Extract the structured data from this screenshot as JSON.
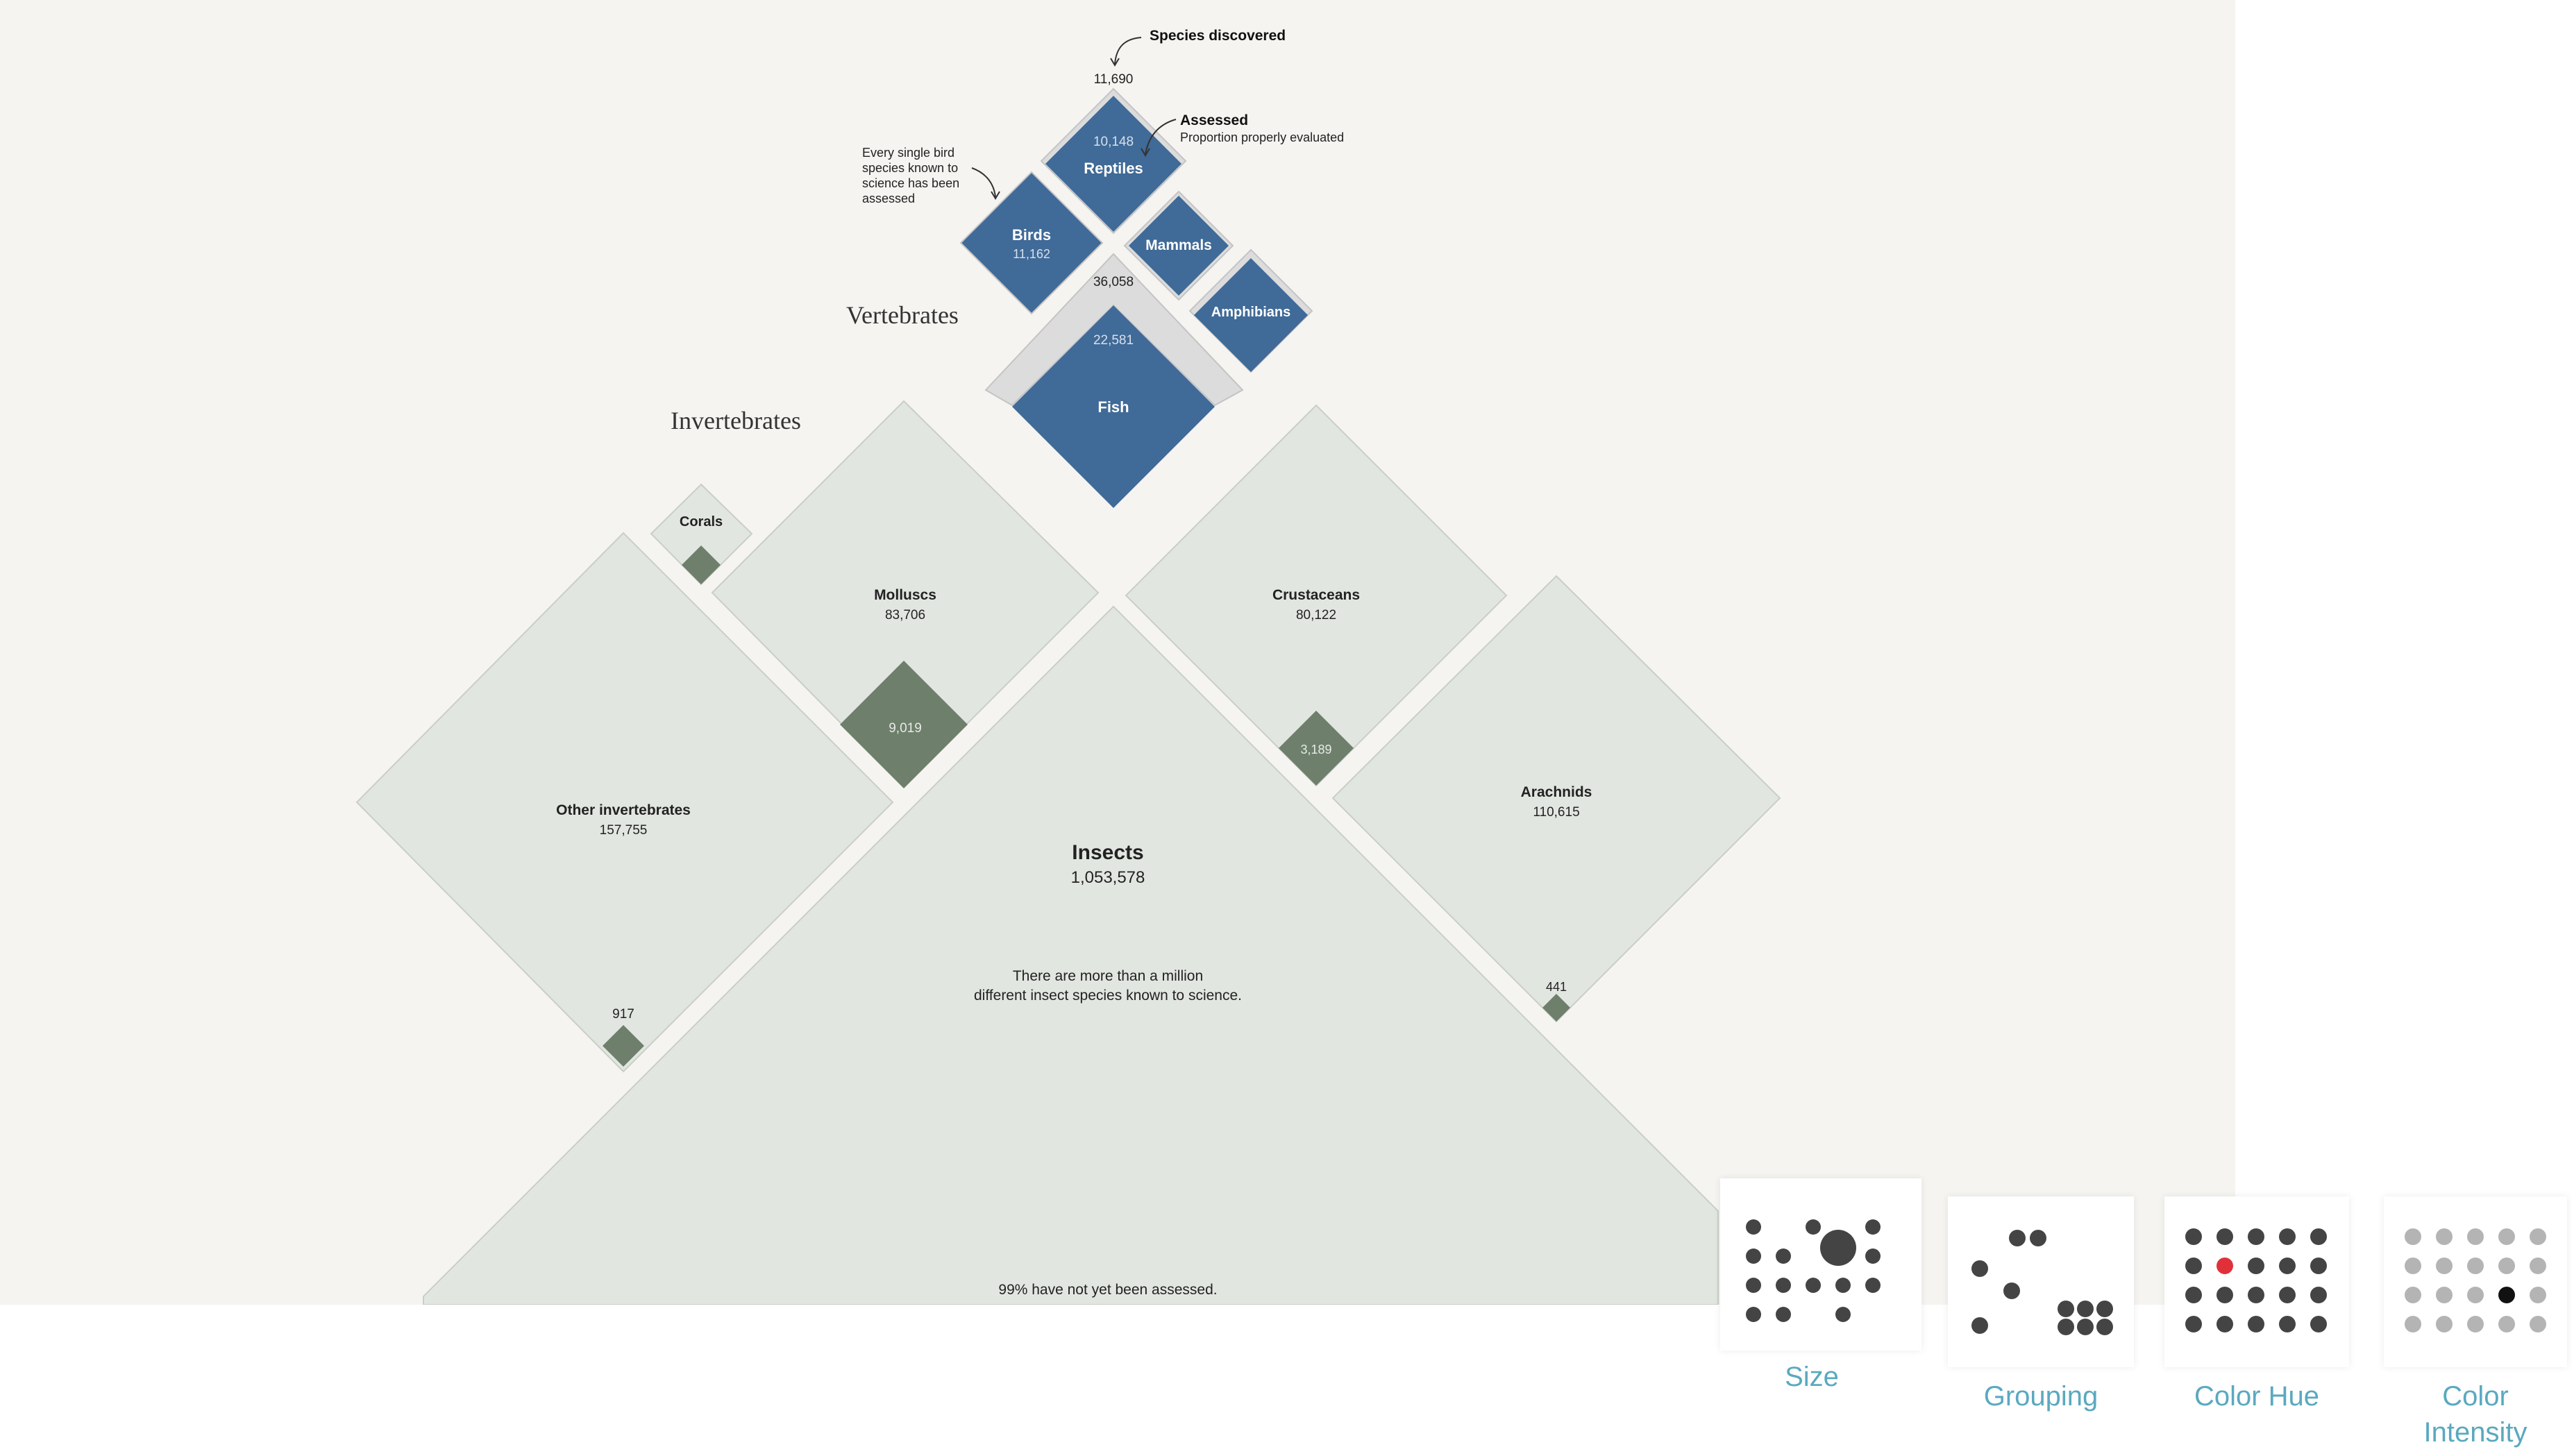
{
  "diagram": {
    "headings": {
      "vertebrates": "Vertebrates",
      "invertebrates": "Invertebrates"
    },
    "annotations": {
      "species_discovered": "Species discovered",
      "assessed": "Assessed",
      "assessed_sub": "Proportion properly evaluated",
      "birds_note": [
        "Every single bird",
        "species known to",
        "science has been",
        "assessed"
      ],
      "insects_note": [
        "There are more than a million",
        "different insect species known to science."
      ],
      "insects_footer": "99% have not yet been assessed."
    },
    "vertebrates_total": "36,058",
    "groups": {
      "reptiles": {
        "name": "Reptiles",
        "discovered": "11,690",
        "assessed": "10,148"
      },
      "birds": {
        "name": "Birds",
        "discovered": "11,162"
      },
      "mammals": {
        "name": "Mammals"
      },
      "amphibians": {
        "name": "Amphibians"
      },
      "fish": {
        "name": "Fish",
        "assessed": "22,581"
      },
      "corals": {
        "name": "Corals"
      },
      "molluscs": {
        "name": "Molluscs",
        "discovered": "83,706",
        "assessed": "9,019"
      },
      "crustaceans": {
        "name": "Crustaceans",
        "discovered": "80,122",
        "assessed": "3,189"
      },
      "other": {
        "name": "Other invertebrates",
        "discovered": "157,755",
        "assessed": "917"
      },
      "arachnids": {
        "name": "Arachnids",
        "discovered": "110,615",
        "assessed": "441"
      },
      "insects": {
        "name": "Insects",
        "discovered": "1,053,578"
      }
    },
    "colors": {
      "background": "#f5f4f1",
      "vertebrate_fill": "#406a97",
      "vertebrate_outer": "#dcdcdc",
      "invertebrate_outer": "#e2e6e1",
      "invertebrate_assessed": "#6e7f6c"
    }
  },
  "legend": {
    "items": [
      {
        "label": "Size",
        "icon": "size-dots-icon"
      },
      {
        "label": "Grouping",
        "icon": "grouping-dots-icon"
      },
      {
        "label": "Color Hue",
        "icon": "color-hue-dots-icon"
      },
      {
        "label": "Color\nIntensity",
        "icon": "color-intensity-dots-icon"
      }
    ],
    "accent": "#5aa9bf",
    "hue_highlight": "#e0313b"
  }
}
